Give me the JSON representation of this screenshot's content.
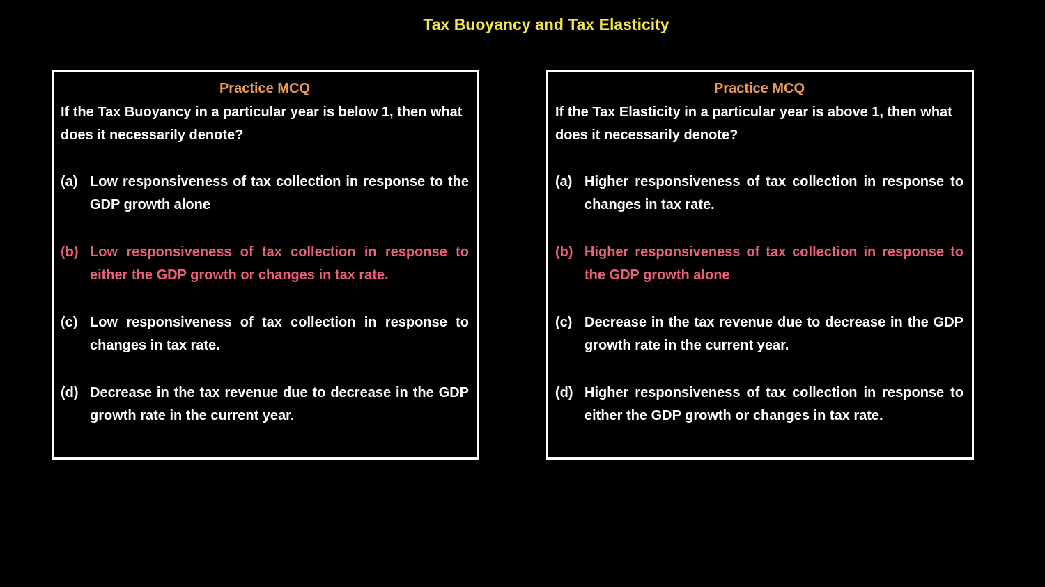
{
  "title": "Tax Buoyancy and Tax Elasticity",
  "panels": [
    {
      "heading": "Practice MCQ",
      "question": "If the Tax Buoyancy in a particular year is below 1, then what does it necessarily denote?",
      "options": [
        {
          "label": "(a)",
          "text": "Low responsiveness of tax collection in response to the GDP growth alone"
        },
        {
          "label": "(b)",
          "text": "Low responsiveness of tax collection in response to either the GDP growth or changes in tax rate."
        },
        {
          "label": "(c)",
          "text": "Low responsiveness of tax collection in response to changes in tax rate."
        },
        {
          "label": "(d)",
          "text": "Decrease in the tax revenue due to decrease in the GDP growth rate in the current year."
        }
      ]
    },
    {
      "heading": "Practice MCQ",
      "question": "If the Tax Elasticity in a particular year is above 1, then what does it necessarily denote?",
      "options": [
        {
          "label": "(a)",
          "text": "Higher responsiveness of tax collection in response to changes in tax rate."
        },
        {
          "label": "(b)",
          "text": "Higher responsiveness of tax collection in response to the GDP growth alone"
        },
        {
          "label": "(c)",
          "text": "Decrease in the tax revenue due to decrease in the GDP growth rate in the current year."
        },
        {
          "label": "(d)",
          "text": "Higher responsiveness of tax collection in response to either the GDP growth or changes in tax rate."
        }
      ]
    }
  ]
}
